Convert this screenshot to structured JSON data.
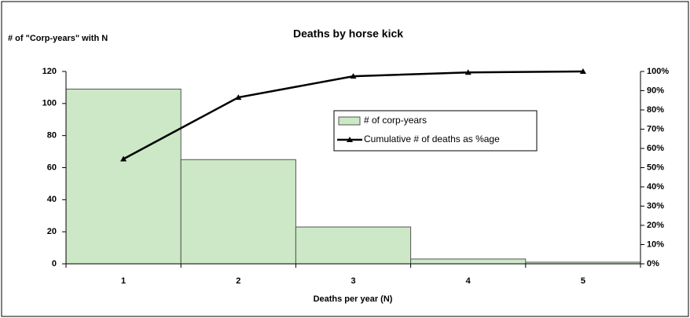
{
  "chart_data": {
    "type": "bar",
    "title": "Deaths by horse kick",
    "y_label": "# of \"Corp-years\" with N",
    "x_label": "Deaths per year (N)",
    "categories": [
      "1",
      "2",
      "3",
      "4",
      "5"
    ],
    "series": [
      {
        "name": "# of corp-years",
        "type": "bar",
        "color": "#cce8c6",
        "values": [
          109,
          65,
          23,
          3,
          1
        ]
      },
      {
        "name": "Cumulative # of deaths as %age",
        "type": "line",
        "axis": "y2",
        "color": "#000000",
        "values": [
          54.5,
          86.5,
          97.5,
          99.5,
          100
        ]
      }
    ],
    "ylim": [
      0,
      120
    ],
    "yticks": [
      0,
      20,
      40,
      60,
      80,
      100,
      120
    ],
    "y2lim": [
      0,
      100
    ],
    "y2ticks": [
      {
        "value": 0,
        "label": "0%"
      },
      {
        "value": 10,
        "label": "10%"
      },
      {
        "value": 20,
        "label": "20%"
      },
      {
        "value": 30,
        "label": "30%"
      },
      {
        "value": 40,
        "label": "40%"
      },
      {
        "value": 50,
        "label": "50%"
      },
      {
        "value": 60,
        "label": "60%"
      },
      {
        "value": 70,
        "label": "70%"
      },
      {
        "value": 80,
        "label": "80%"
      },
      {
        "value": 90,
        "label": "90%"
      },
      {
        "value": 100,
        "label": "100%"
      }
    ],
    "grid": false
  }
}
